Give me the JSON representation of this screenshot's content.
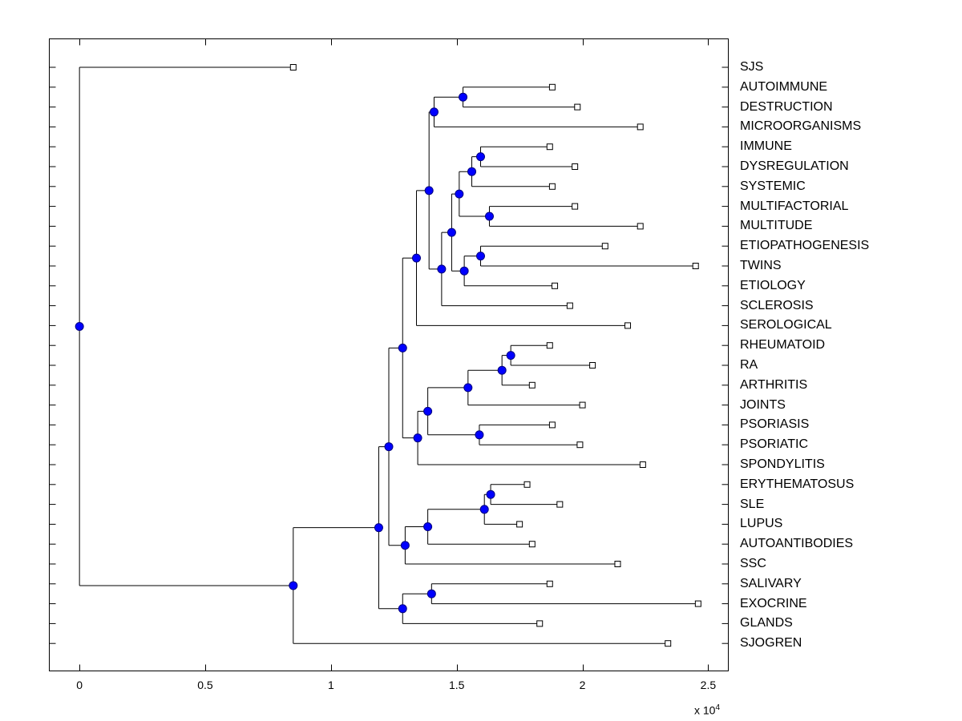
{
  "chart_data": {
    "type": "dendrogram",
    "title": "",
    "xlabel": "",
    "ylabel": "",
    "xlim": [
      -1200,
      25800
    ],
    "x_ticks": [
      {
        "value": 0,
        "label": "0"
      },
      {
        "value": 5000,
        "label": "0.5"
      },
      {
        "value": 10000,
        "label": "1"
      },
      {
        "value": 15000,
        "label": "1.5"
      },
      {
        "value": 20000,
        "label": "2"
      },
      {
        "value": 25000,
        "label": "2.5"
      }
    ],
    "x_scale_base": "x 10",
    "x_scale_exponent": "4",
    "leaves": [
      {
        "label": "SJS",
        "x": 8500
      },
      {
        "label": "AUTOIMMUNE",
        "x": 18800
      },
      {
        "label": "DESTRUCTION",
        "x": 19800
      },
      {
        "label": "MICROORGANISMS",
        "x": 22300
      },
      {
        "label": "IMMUNE",
        "x": 18700
      },
      {
        "label": "DYSREGULATION",
        "x": 19700
      },
      {
        "label": "SYSTEMIC",
        "x": 18800
      },
      {
        "label": "MULTIFACTORIAL",
        "x": 19700
      },
      {
        "label": "MULTITUDE",
        "x": 22300
      },
      {
        "label": "ETIOPATHOGENESIS",
        "x": 20900
      },
      {
        "label": "TWINS",
        "x": 24500
      },
      {
        "label": "ETIOLOGY",
        "x": 18900
      },
      {
        "label": "SCLEROSIS",
        "x": 19500
      },
      {
        "label": "SEROLOGICAL",
        "x": 21800
      },
      {
        "label": "RHEUMATOID",
        "x": 18700
      },
      {
        "label": "RA",
        "x": 20400
      },
      {
        "label": "ARTHRITIS",
        "x": 18000
      },
      {
        "label": "JOINTS",
        "x": 20000
      },
      {
        "label": "PSORIASIS",
        "x": 18800
      },
      {
        "label": "PSORIATIC",
        "x": 19900
      },
      {
        "label": "SPONDYLITIS",
        "x": 22400
      },
      {
        "label": "ERYTHEMATOSUS",
        "x": 17800
      },
      {
        "label": "SLE",
        "x": 19100
      },
      {
        "label": "LUPUS",
        "x": 17500
      },
      {
        "label": "AUTOANTIBODIES",
        "x": 18000
      },
      {
        "label": "SSC",
        "x": 21400
      },
      {
        "label": "SALIVARY",
        "x": 18700
      },
      {
        "label": "EXOCRINE",
        "x": 24600
      },
      {
        "label": "GLANDS",
        "x": 18300
      },
      {
        "label": "SJOGREN",
        "x": 23400
      }
    ],
    "nodes": [
      {
        "id": "n1",
        "x": 15250,
        "children": [
          "AUTOIMMUNE",
          "DESTRUCTION"
        ]
      },
      {
        "id": "n2",
        "x": 14100,
        "children": [
          "n1",
          "MICROORGANISMS"
        ]
      },
      {
        "id": "n3",
        "x": 15950,
        "children": [
          "IMMUNE",
          "DYSREGULATION"
        ]
      },
      {
        "id": "n4",
        "x": 15600,
        "children": [
          "n3",
          "SYSTEMIC"
        ]
      },
      {
        "id": "n5",
        "x": 16300,
        "children": [
          "MULTIFACTORIAL",
          "MULTITUDE"
        ]
      },
      {
        "id": "n6",
        "x": 15100,
        "children": [
          "n4",
          "n5"
        ]
      },
      {
        "id": "n7",
        "x": 15950,
        "children": [
          "ETIOPATHOGENESIS",
          "TWINS"
        ]
      },
      {
        "id": "n8",
        "x": 15300,
        "children": [
          "n7",
          "ETIOLOGY"
        ]
      },
      {
        "id": "n9",
        "x": 14800,
        "children": [
          "n6",
          "n8"
        ]
      },
      {
        "id": "n10",
        "x": 14400,
        "children": [
          "n9",
          "SCLEROSIS"
        ]
      },
      {
        "id": "n11",
        "x": 13900,
        "children": [
          "n2",
          "n10"
        ]
      },
      {
        "id": "n12",
        "x": 13400,
        "children": [
          "n11",
          "SEROLOGICAL"
        ]
      },
      {
        "id": "n13",
        "x": 17150,
        "children": [
          "RHEUMATOID",
          "RA"
        ]
      },
      {
        "id": "n14",
        "x": 16800,
        "children": [
          "n13",
          "ARTHRITIS"
        ]
      },
      {
        "id": "n15",
        "x": 15450,
        "children": [
          "n14",
          "JOINTS"
        ]
      },
      {
        "id": "n16",
        "x": 15900,
        "children": [
          "PSORIASIS",
          "PSORIATIC"
        ]
      },
      {
        "id": "n17",
        "x": 13850,
        "children": [
          "n15",
          "n16"
        ]
      },
      {
        "id": "n18",
        "x": 13450,
        "children": [
          "n17",
          "SPONDYLITIS"
        ]
      },
      {
        "id": "n19",
        "x": 12850,
        "children": [
          "n12",
          "n18"
        ]
      },
      {
        "id": "n20",
        "x": 16350,
        "children": [
          "ERYTHEMATOSUS",
          "SLE"
        ]
      },
      {
        "id": "n21",
        "x": 16100,
        "children": [
          "n20",
          "LUPUS"
        ]
      },
      {
        "id": "n22",
        "x": 13850,
        "children": [
          "n21",
          "AUTOANTIBODIES"
        ]
      },
      {
        "id": "n23",
        "x": 12950,
        "children": [
          "n22",
          "SSC"
        ]
      },
      {
        "id": "n24",
        "x": 12300,
        "children": [
          "n19",
          "n23"
        ]
      },
      {
        "id": "n25",
        "x": 14000,
        "children": [
          "SALIVARY",
          "EXOCRINE"
        ]
      },
      {
        "id": "n26",
        "x": 12850,
        "children": [
          "n25",
          "GLANDS"
        ]
      },
      {
        "id": "n27",
        "x": 11900,
        "children": [
          "n24",
          "n26"
        ]
      },
      {
        "id": "n28",
        "x": 8500,
        "children": [
          "n27",
          "SJOGREN"
        ]
      },
      {
        "id": "n29",
        "x": 0,
        "children": [
          "SJS",
          "n28"
        ]
      }
    ],
    "colors": {
      "internal_node_fill": "#0000ff",
      "internal_node_stroke": "#000080",
      "leaf_marker_fill": "#ffffff",
      "line": "#000000"
    }
  }
}
